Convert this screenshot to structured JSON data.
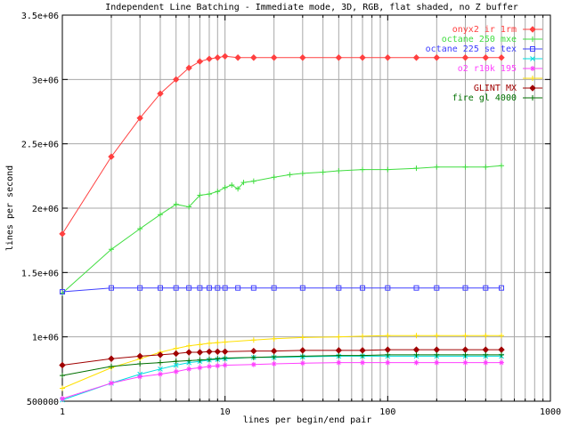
{
  "chart_data": {
    "type": "line",
    "title": "Independent Line Batching - Immediate mode, 3D, RGB, flat shaded, no Z buffer",
    "xlabel": "lines per begin/end pair",
    "ylabel": "lines per second",
    "x_scale": "log",
    "xlim": [
      1,
      1000
    ],
    "ylim": [
      500000,
      3500000
    ],
    "grid": true,
    "legend_position": "top-right",
    "x_ticks": [
      {
        "value": 1,
        "label": "1"
      },
      {
        "value": 10,
        "label": "10"
      },
      {
        "value": 100,
        "label": "100"
      },
      {
        "value": 1000,
        "label": "1000"
      }
    ],
    "y_ticks": [
      {
        "value": 500000,
        "label": "500000"
      },
      {
        "value": 1000000,
        "label": "1e+06"
      },
      {
        "value": 1500000,
        "label": "1.5e+06"
      },
      {
        "value": 2000000,
        "label": "2e+06"
      },
      {
        "value": 2500000,
        "label": "2.5e+06"
      },
      {
        "value": 3000000,
        "label": "3e+06"
      },
      {
        "value": 3500000,
        "label": "3.5e+06"
      }
    ],
    "series": [
      {
        "name": "onyx2 ir 1rm",
        "color": "#ff4040",
        "marker": "diamond",
        "points": [
          [
            1,
            1800000
          ],
          [
            2,
            2400000
          ],
          [
            3,
            2700000
          ],
          [
            4,
            2890000
          ],
          [
            5,
            3000000
          ],
          [
            6,
            3090000
          ],
          [
            7,
            3140000
          ],
          [
            8,
            3160000
          ],
          [
            9,
            3170000
          ],
          [
            10,
            3180000
          ],
          [
            12,
            3170000
          ],
          [
            15,
            3170000
          ],
          [
            20,
            3170000
          ],
          [
            30,
            3170000
          ],
          [
            50,
            3170000
          ],
          [
            70,
            3170000
          ],
          [
            100,
            3170000
          ],
          [
            150,
            3170000
          ],
          [
            200,
            3170000
          ],
          [
            300,
            3170000
          ],
          [
            400,
            3170000
          ],
          [
            500,
            3170000
          ]
        ]
      },
      {
        "name": "octane 250 mxe",
        "color": "#40dd40",
        "marker": "plus",
        "points": [
          [
            1,
            1340000
          ],
          [
            2,
            1680000
          ],
          [
            3,
            1840000
          ],
          [
            4,
            1950000
          ],
          [
            5,
            2030000
          ],
          [
            6,
            2010000
          ],
          [
            7,
            2100000
          ],
          [
            8,
            2110000
          ],
          [
            9,
            2130000
          ],
          [
            10,
            2160000
          ],
          [
            11,
            2180000
          ],
          [
            12,
            2150000
          ],
          [
            13,
            2200000
          ],
          [
            15,
            2210000
          ],
          [
            20,
            2240000
          ],
          [
            25,
            2260000
          ],
          [
            30,
            2270000
          ],
          [
            40,
            2280000
          ],
          [
            50,
            2290000
          ],
          [
            70,
            2300000
          ],
          [
            100,
            2300000
          ],
          [
            150,
            2310000
          ],
          [
            200,
            2320000
          ],
          [
            300,
            2320000
          ],
          [
            400,
            2320000
          ],
          [
            500,
            2330000
          ]
        ]
      },
      {
        "name": "octane 225 se tex",
        "color": "#4040ff",
        "marker": "square",
        "points": [
          [
            1,
            1350000
          ],
          [
            2,
            1380000
          ],
          [
            3,
            1380000
          ],
          [
            4,
            1380000
          ],
          [
            5,
            1380000
          ],
          [
            6,
            1380000
          ],
          [
            7,
            1380000
          ],
          [
            8,
            1380000
          ],
          [
            9,
            1380000
          ],
          [
            10,
            1380000
          ],
          [
            12,
            1380000
          ],
          [
            15,
            1380000
          ],
          [
            20,
            1380000
          ],
          [
            30,
            1380000
          ],
          [
            50,
            1380000
          ],
          [
            70,
            1380000
          ],
          [
            100,
            1380000
          ],
          [
            150,
            1380000
          ],
          [
            200,
            1380000
          ],
          [
            300,
            1380000
          ],
          [
            400,
            1380000
          ],
          [
            500,
            1380000
          ]
        ]
      },
      {
        "name": "",
        "color": "#00e0e0",
        "marker": "cross",
        "points": [
          [
            1,
            510000
          ],
          [
            2,
            640000
          ],
          [
            3,
            710000
          ],
          [
            4,
            750000
          ],
          [
            5,
            780000
          ],
          [
            6,
            800000
          ],
          [
            7,
            810000
          ],
          [
            8,
            820000
          ],
          [
            9,
            825000
          ],
          [
            10,
            830000
          ],
          [
            15,
            840000
          ],
          [
            20,
            840000
          ],
          [
            30,
            845000
          ],
          [
            50,
            850000
          ],
          [
            70,
            850000
          ],
          [
            100,
            850000
          ],
          [
            150,
            850000
          ],
          [
            200,
            850000
          ],
          [
            300,
            850000
          ],
          [
            400,
            850000
          ],
          [
            500,
            850000
          ]
        ]
      },
      {
        "name": "o2 r10k 195",
        "color": "#ff40ff",
        "marker": "star",
        "points": [
          [
            1,
            520000
          ],
          [
            2,
            640000
          ],
          [
            3,
            690000
          ],
          [
            4,
            710000
          ],
          [
            5,
            730000
          ],
          [
            6,
            750000
          ],
          [
            7,
            760000
          ],
          [
            8,
            770000
          ],
          [
            9,
            775000
          ],
          [
            10,
            780000
          ],
          [
            15,
            785000
          ],
          [
            20,
            790000
          ],
          [
            30,
            795000
          ],
          [
            50,
            800000
          ],
          [
            70,
            800000
          ],
          [
            100,
            800000
          ],
          [
            150,
            800000
          ],
          [
            200,
            800000
          ],
          [
            300,
            800000
          ],
          [
            400,
            800000
          ],
          [
            500,
            800000
          ]
        ]
      },
      {
        "name": "",
        "color": "#ffe000",
        "marker": "plus",
        "points": [
          [
            1,
            600000
          ],
          [
            2,
            760000
          ],
          [
            3,
            830000
          ],
          [
            4,
            880000
          ],
          [
            5,
            910000
          ],
          [
            6,
            930000
          ],
          [
            7,
            940000
          ],
          [
            8,
            950000
          ],
          [
            9,
            955000
          ],
          [
            10,
            960000
          ],
          [
            15,
            975000
          ],
          [
            20,
            985000
          ],
          [
            30,
            995000
          ],
          [
            50,
            1000000
          ],
          [
            70,
            1005000
          ],
          [
            100,
            1010000
          ],
          [
            150,
            1010000
          ],
          [
            200,
            1010000
          ],
          [
            300,
            1010000
          ],
          [
            400,
            1010000
          ],
          [
            500,
            1010000
          ]
        ]
      },
      {
        "name": "GLINT MX",
        "color": "#a00000",
        "marker": "diamond",
        "points": [
          [
            1,
            780000
          ],
          [
            2,
            830000
          ],
          [
            3,
            850000
          ],
          [
            4,
            860000
          ],
          [
            5,
            870000
          ],
          [
            6,
            880000
          ],
          [
            7,
            880000
          ],
          [
            8,
            885000
          ],
          [
            9,
            885000
          ],
          [
            10,
            885000
          ],
          [
            15,
            890000
          ],
          [
            20,
            890000
          ],
          [
            30,
            895000
          ],
          [
            50,
            895000
          ],
          [
            70,
            895000
          ],
          [
            100,
            900000
          ],
          [
            150,
            900000
          ],
          [
            200,
            900000
          ],
          [
            300,
            900000
          ],
          [
            400,
            900000
          ],
          [
            500,
            900000
          ]
        ]
      },
      {
        "name": "fire gl 4000",
        "color": "#007000",
        "marker": "plus",
        "points": [
          [
            1,
            700000
          ],
          [
            2,
            770000
          ],
          [
            3,
            790000
          ],
          [
            4,
            800000
          ],
          [
            5,
            810000
          ],
          [
            6,
            815000
          ],
          [
            7,
            820000
          ],
          [
            8,
            825000
          ],
          [
            9,
            830000
          ],
          [
            10,
            835000
          ],
          [
            15,
            840000
          ],
          [
            20,
            845000
          ],
          [
            30,
            850000
          ],
          [
            50,
            855000
          ],
          [
            70,
            855000
          ],
          [
            100,
            860000
          ],
          [
            150,
            860000
          ],
          [
            200,
            860000
          ],
          [
            300,
            860000
          ],
          [
            400,
            860000
          ],
          [
            500,
            860000
          ]
        ]
      }
    ]
  }
}
